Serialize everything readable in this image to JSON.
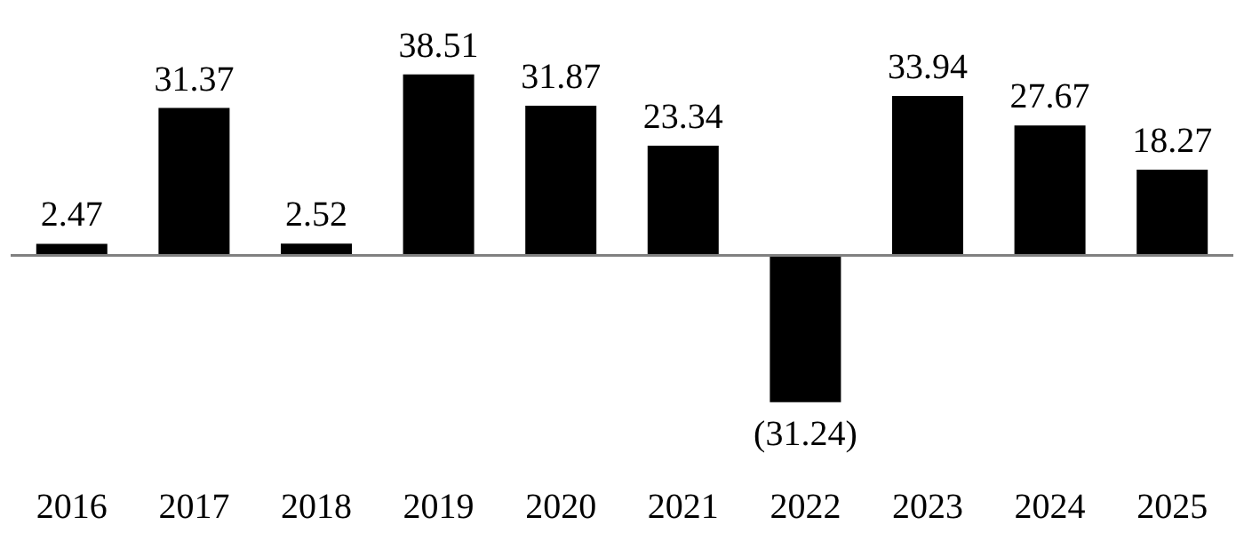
{
  "chart_data": {
    "type": "bar",
    "categories": [
      "2016",
      "2017",
      "2018",
      "2019",
      "2020",
      "2021",
      "2022",
      "2023",
      "2024",
      "2025"
    ],
    "values": [
      2.47,
      31.37,
      2.52,
      38.51,
      31.87,
      23.34,
      -31.24,
      33.94,
      27.67,
      18.27
    ],
    "value_labels": [
      "2.47",
      "31.37",
      "2.52",
      "38.51",
      "31.87",
      "23.34",
      "(31.24)",
      "33.94",
      "27.67",
      "18.27"
    ],
    "color": "#000000"
  }
}
